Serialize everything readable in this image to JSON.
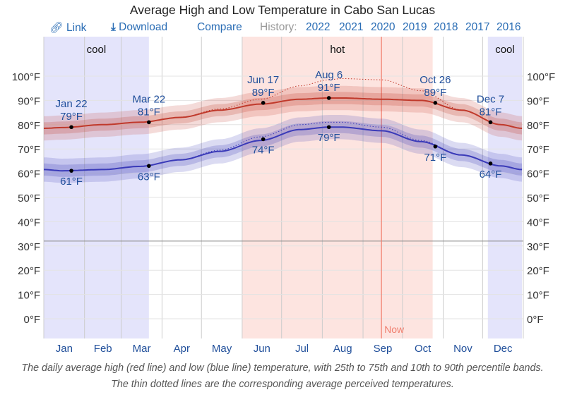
{
  "title": "Average High and Low Temperature in Cabo San Lucas",
  "toolbar": {
    "link": "Link",
    "link_icon": "link-icon",
    "download": "Download",
    "download_icon": "download-icon",
    "compare": "Compare",
    "history_label": "History:",
    "years": [
      "2022",
      "2021",
      "2020",
      "2019",
      "2018",
      "2017",
      "2016"
    ]
  },
  "caption": "The daily average high (red line) and low (blue line) temperature, with 25th to 75th and 10th to 90th percentile bands. The thin dotted lines are the corresponding average perceived temperatures.",
  "chart_data": {
    "type": "line",
    "ylim": [
      -8,
      112
    ],
    "yticks": [
      0,
      10,
      20,
      30,
      40,
      50,
      60,
      70,
      80,
      90,
      100
    ],
    "ytick_labels": [
      "0°F",
      "10°F",
      "20°F",
      "30°F",
      "40°F",
      "50°F",
      "60°F",
      "70°F",
      "80°F",
      "90°F",
      "100°F"
    ],
    "xtick_labels": [
      "Jan",
      "Feb",
      "Mar",
      "Apr",
      "May",
      "Jun",
      "Jul",
      "Aug",
      "Sep",
      "Oct",
      "Nov",
      "Dec"
    ],
    "grid": true,
    "freezing_line": 32,
    "colors": {
      "high": "#c0392b",
      "low": "#3a3ab8",
      "hot": "#fde4e0",
      "cool": "#e4e4fb",
      "now": "#f08070",
      "label": "#1f4e9a"
    },
    "seasons": [
      {
        "label": "cool",
        "start_day": 1,
        "end_day": 81
      },
      {
        "label": "hot",
        "start_day": 152,
        "end_day": 297
      },
      {
        "label": "cool",
        "start_day": 339,
        "end_day": 365
      }
    ],
    "now": {
      "label": "Now",
      "day": 258
    },
    "x_days": [
      1,
      15,
      46,
      74,
      105,
      135,
      166,
      196,
      218,
      227,
      258,
      288,
      319,
      349,
      365
    ],
    "series": [
      {
        "key": "high",
        "values": [
          78.5,
          78.8,
          80,
          81,
          83,
          86,
          88.5,
          90.5,
          91,
          91,
          90.5,
          90,
          86,
          80,
          78.5
        ]
      },
      {
        "key": "low",
        "values": [
          61.5,
          61,
          61.5,
          62.8,
          65.5,
          69,
          73.5,
          78,
          79,
          79,
          77.5,
          73,
          67.5,
          63,
          61.5
        ]
      },
      {
        "key": "high_perceived",
        "values": [
          78.5,
          78.8,
          80,
          81,
          83,
          86.5,
          90.5,
          96,
          98.5,
          99,
          98.5,
          94,
          86,
          80,
          78.5
        ]
      },
      {
        "key": "low_perceived",
        "values": [
          61.5,
          61,
          61.5,
          62.8,
          65.5,
          69.5,
          75,
          80,
          81,
          81,
          79,
          73.5,
          67.5,
          63,
          61.5
        ]
      }
    ],
    "band_25_75": 2.5,
    "band_10_90": 5,
    "annotations": [
      {
        "date": "Jan 22",
        "day": 22,
        "value": 79,
        "label": "79°F",
        "series": "high"
      },
      {
        "date": "Mar 22",
        "day": 81,
        "value": 81,
        "label": "81°F",
        "series": "high"
      },
      {
        "date": "Jun 17",
        "day": 168,
        "value": 89,
        "label": "89°F",
        "series": "high"
      },
      {
        "date": "Aug 6",
        "day": 218,
        "value": 91,
        "label": "91°F",
        "series": "high"
      },
      {
        "date": "Oct 26",
        "day": 299,
        "value": 89,
        "label": "89°F",
        "series": "high"
      },
      {
        "date": "Dec 7",
        "day": 341,
        "value": 81,
        "label": "81°F",
        "series": "high"
      },
      {
        "date": "",
        "day": 22,
        "value": 61,
        "label": "61°F",
        "series": "low"
      },
      {
        "date": "",
        "day": 81,
        "value": 63,
        "label": "63°F",
        "series": "low"
      },
      {
        "date": "",
        "day": 168,
        "value": 74,
        "label": "74°F",
        "series": "low"
      },
      {
        "date": "",
        "day": 218,
        "value": 79,
        "label": "79°F",
        "series": "low"
      },
      {
        "date": "",
        "day": 299,
        "value": 71,
        "label": "71°F",
        "series": "low"
      },
      {
        "date": "",
        "day": 341,
        "value": 64,
        "label": "64°F",
        "series": "low"
      }
    ]
  }
}
